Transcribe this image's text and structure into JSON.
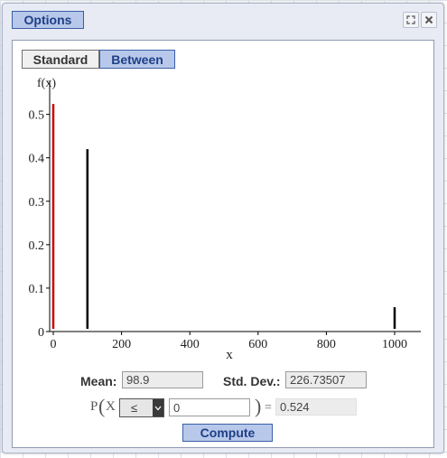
{
  "window": {
    "options_label": "Options",
    "controls": [
      "expand-icon",
      "close-icon"
    ]
  },
  "tabs": [
    {
      "label": "Standard",
      "active": false
    },
    {
      "label": "Between",
      "active": true
    }
  ],
  "chart_data": {
    "type": "bar",
    "ylabel": "f(x)",
    "xlabel": "x",
    "xlim": [
      0,
      1000
    ],
    "ylim": [
      0,
      0.52
    ],
    "xticks": [
      "0",
      "200",
      "400",
      "600",
      "800",
      "1000"
    ],
    "yticks": [
      "0",
      "0.1",
      "0.2",
      "0.3",
      "0.4",
      "0.5"
    ],
    "grid": false,
    "series": [
      {
        "x": [
          0,
          100,
          1000
        ],
        "values": [
          0.524,
          0.42,
          0.056
        ],
        "highlighted": [
          true,
          false,
          false
        ]
      }
    ],
    "colors": {
      "highlight": "#cc0000",
      "bar": "#000000"
    }
  },
  "stats": {
    "mean_label": "Mean:",
    "mean_value": "98.9",
    "sd_label": "Std. Dev.:",
    "sd_value": "226.73507"
  },
  "probability": {
    "prefix": "P",
    "open_paren": "(",
    "variable": "X",
    "operator": "≤",
    "value": "0",
    "close_paren": ")",
    "equals": "=",
    "result": "0.524"
  },
  "compute_label": "Compute",
  "colors": {
    "accent": "#b7c8ea",
    "accent_border": "#3a5fa8",
    "accent_text": "#1f3f86"
  }
}
